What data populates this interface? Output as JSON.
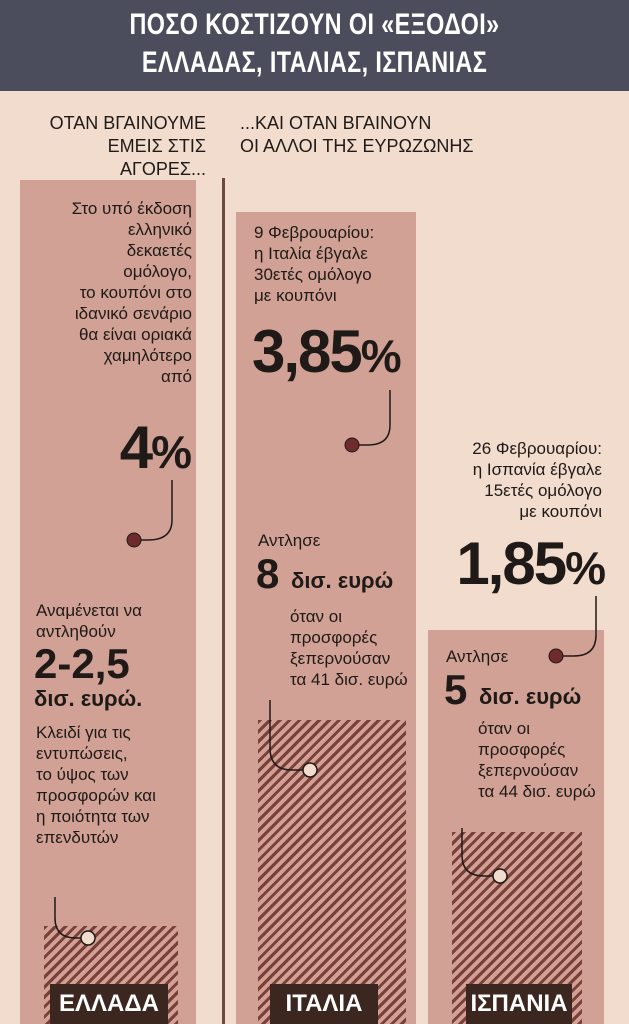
{
  "header": {
    "title_line1": "ΠΟΣΟ ΚΟΣΤΙΖΟΥΝ ΟΙ «ΕΞΟΔΟΙ»",
    "title_line2": "ΕΛΛΑΔΑΣ, ΙΤΑΛΙΑΣ, ΙΣΠΑΝΙΑΣ"
  },
  "left_heading": [
    "ΟΤΑΝ ΒΓΑΙΝΟΥΜΕ",
    "ΕΜΕΙΣ ΣΤΙΣ ΑΓΟΡΕΣ..."
  ],
  "right_heading": [
    "...ΚΑΙ ΟΤΑΝ ΒΓΑΙΝΟΥΝ",
    "ΟΙ ΑΛΛΟΙ ΤΗΣ ΕΥΡΩΖΩΝΗΣ"
  ],
  "greece": {
    "label": "ΕΛΛΑΔΑ",
    "intro": [
      "Στο υπό έκδοση",
      "ελληνικό",
      "δεκαετές",
      "ομόλογο,",
      "το κουπόνι στο",
      "ιδανικό σενάριο",
      "θα είναι οριακά",
      "χαμηλότερο",
      "από"
    ],
    "rate_num": "4",
    "rate_pct": "%",
    "expect": [
      "Αναμένεται να",
      "αντληθούν"
    ],
    "amount": "2-2,5",
    "amount_unit": "δισ. ευρώ.",
    "note": [
      "Κλειδί για τις",
      "εντυπώσεις,",
      "το ύψος των",
      "προσφορών και",
      "η ποιότητα των",
      "επενδυτών"
    ]
  },
  "italy": {
    "label": "ΙΤΑΛΙΑ",
    "intro": [
      "9 Φεβρουαρίου:",
      "η Ιταλία έβγαλε",
      "30ετές ομόλογο",
      "με κουπόνι"
    ],
    "rate_num": "3,85",
    "rate_pct": "%",
    "raised_label": "Αντλησε",
    "amount": "8",
    "amount_unit": "δισ. ευρώ",
    "note": [
      "όταν οι",
      "προσφορές",
      "ξεπερνούσαν",
      "τα 41 δισ. ευρώ"
    ]
  },
  "spain": {
    "label": "ΙΣΠΑΝΙΑ",
    "intro": [
      "26 Φεβρουαρίου:",
      "η Ισπανία έβγαλε",
      "15ετές ομόλογο",
      "με κουπόνι"
    ],
    "rate_num": "1,85",
    "rate_pct": "%",
    "raised_label": "Αντλησε",
    "amount": "5",
    "amount_unit": "δισ. ευρώ",
    "note": [
      "όταν οι",
      "προσφορές",
      "ξεπερνούσαν",
      "τα 44 δισ. ευρώ"
    ]
  },
  "colors": {
    "header_bg": "#4b4d5c",
    "page_bg": "#f1dccd",
    "bar": "#d0a194",
    "dot": "#6e2a2c",
    "label_bg": "#3b2620"
  }
}
